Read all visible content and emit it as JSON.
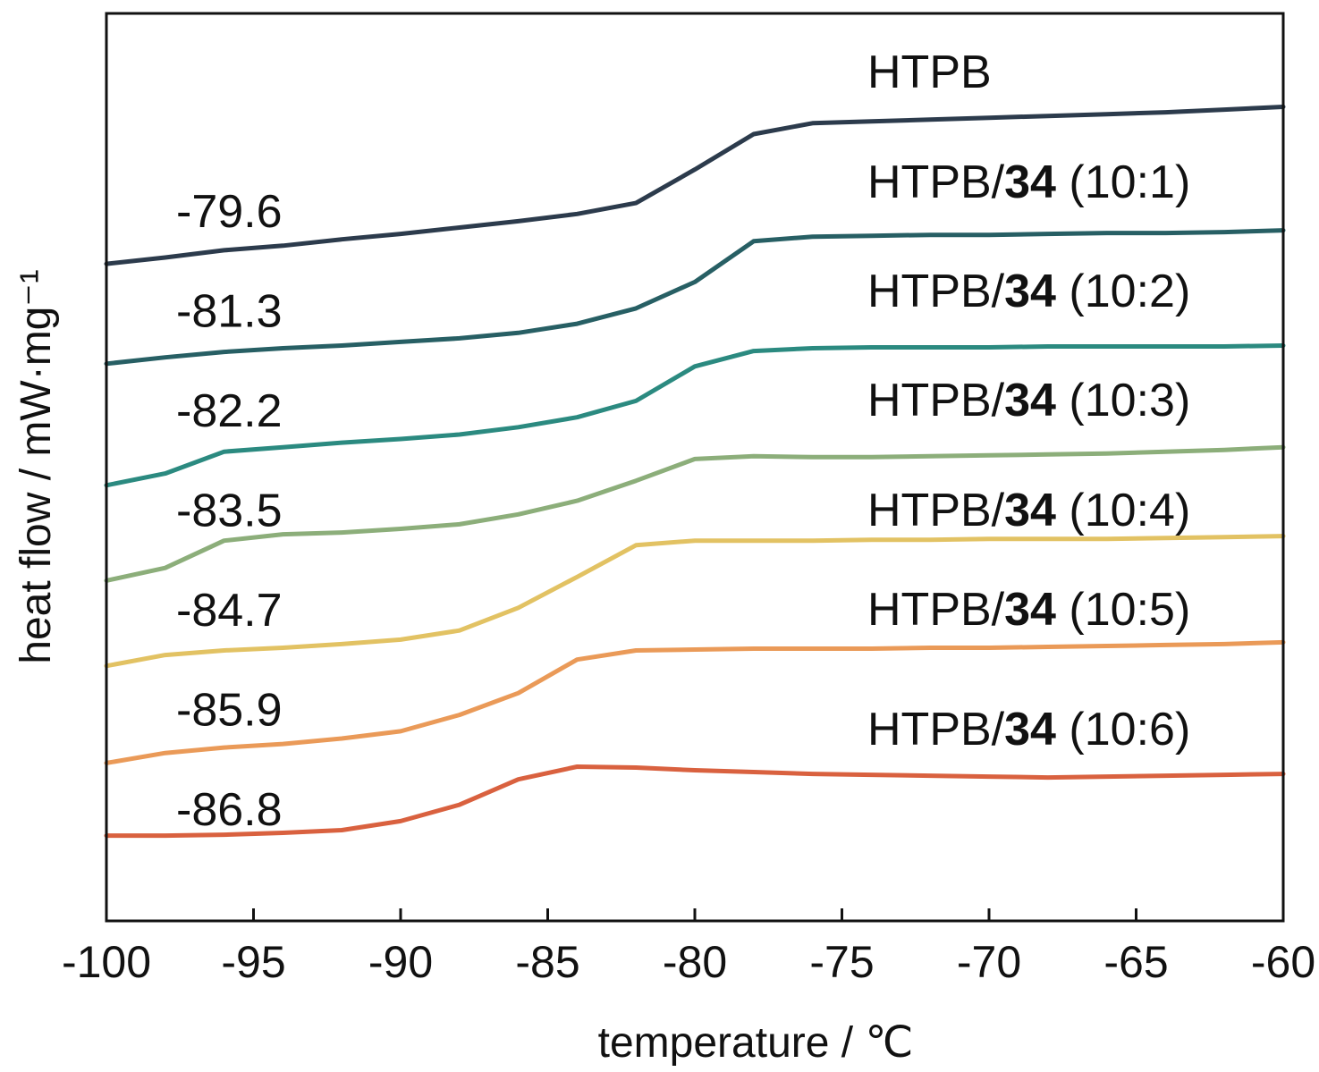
{
  "chart_data": {
    "type": "line",
    "x_label": "temperature / ℃",
    "y_label": "heat flow / mW·mg⁻¹",
    "xlim": [
      -100,
      -60
    ],
    "xticks": [
      -100,
      -95,
      -90,
      -85,
      -80,
      -75,
      -70,
      -65,
      -60
    ],
    "ylim": [
      0,
      100
    ],
    "x": [
      -100,
      -98,
      -96,
      -94,
      -92,
      -90,
      -88,
      -86,
      -84,
      -82,
      -80,
      -78,
      -76,
      -74,
      -72,
      -70,
      -68,
      -66,
      -64,
      -62,
      -60
    ],
    "series": [
      {
        "name": "HTPB",
        "color": "#2c3b4c",
        "tg": -79.6,
        "values": [
          72.4,
          73.1,
          73.9,
          74.4,
          75.1,
          75.7,
          76.4,
          77.1,
          77.9,
          79.1,
          82.8,
          86.7,
          87.9,
          88.1,
          88.3,
          88.5,
          88.7,
          88.9,
          89.1,
          89.4,
          89.7
        ]
      },
      {
        "name": "HTPB/34 (10:1)",
        "color": "#275f64",
        "tg": -81.3,
        "values": [
          61.4,
          62.1,
          62.7,
          63.1,
          63.4,
          63.8,
          64.2,
          64.8,
          65.8,
          67.5,
          70.4,
          74.9,
          75.4,
          75.5,
          75.6,
          75.6,
          75.7,
          75.8,
          75.8,
          75.9,
          76.1
        ]
      },
      {
        "name": "HTPB/34 (10:2)",
        "color": "#2b8a80",
        "tg": -82.2,
        "values": [
          48.0,
          49.3,
          51.7,
          52.2,
          52.7,
          53.1,
          53.6,
          54.4,
          55.5,
          57.3,
          61.1,
          62.8,
          63.1,
          63.2,
          63.2,
          63.2,
          63.3,
          63.3,
          63.3,
          63.3,
          63.4
        ]
      },
      {
        "name": "HTPB/34 (10:3)",
        "color": "#8cae7a",
        "tg": -83.5,
        "values": [
          37.5,
          38.9,
          41.9,
          42.6,
          42.8,
          43.2,
          43.7,
          44.8,
          46.3,
          48.5,
          50.9,
          51.2,
          51.1,
          51.1,
          51.2,
          51.3,
          51.4,
          51.5,
          51.7,
          51.9,
          52.2
        ]
      },
      {
        "name": "HTPB/34 (10:4)",
        "color": "#e2c263",
        "tg": -84.7,
        "values": [
          28.1,
          29.3,
          29.8,
          30.1,
          30.5,
          31.0,
          32.0,
          34.5,
          37.9,
          41.4,
          41.9,
          41.9,
          41.9,
          42.0,
          42.0,
          42.1,
          42.1,
          42.1,
          42.2,
          42.3,
          42.4
        ]
      },
      {
        "name": "HTPB/34 (10:5)",
        "color": "#ea9a58",
        "tg": -85.9,
        "values": [
          17.4,
          18.5,
          19.1,
          19.5,
          20.1,
          20.9,
          22.7,
          25.1,
          28.8,
          29.8,
          29.9,
          30.0,
          30.0,
          30.0,
          30.1,
          30.1,
          30.2,
          30.3,
          30.4,
          30.5,
          30.7
        ]
      },
      {
        "name": "HTPB/34 (10:6)",
        "color": "#d9613f",
        "tg": -86.8,
        "values": [
          9.4,
          9.4,
          9.5,
          9.7,
          10.0,
          11.0,
          12.8,
          15.6,
          17.0,
          16.9,
          16.6,
          16.4,
          16.2,
          16.1,
          16.0,
          15.9,
          15.8,
          15.9,
          16.0,
          16.1,
          16.2
        ]
      }
    ]
  }
}
